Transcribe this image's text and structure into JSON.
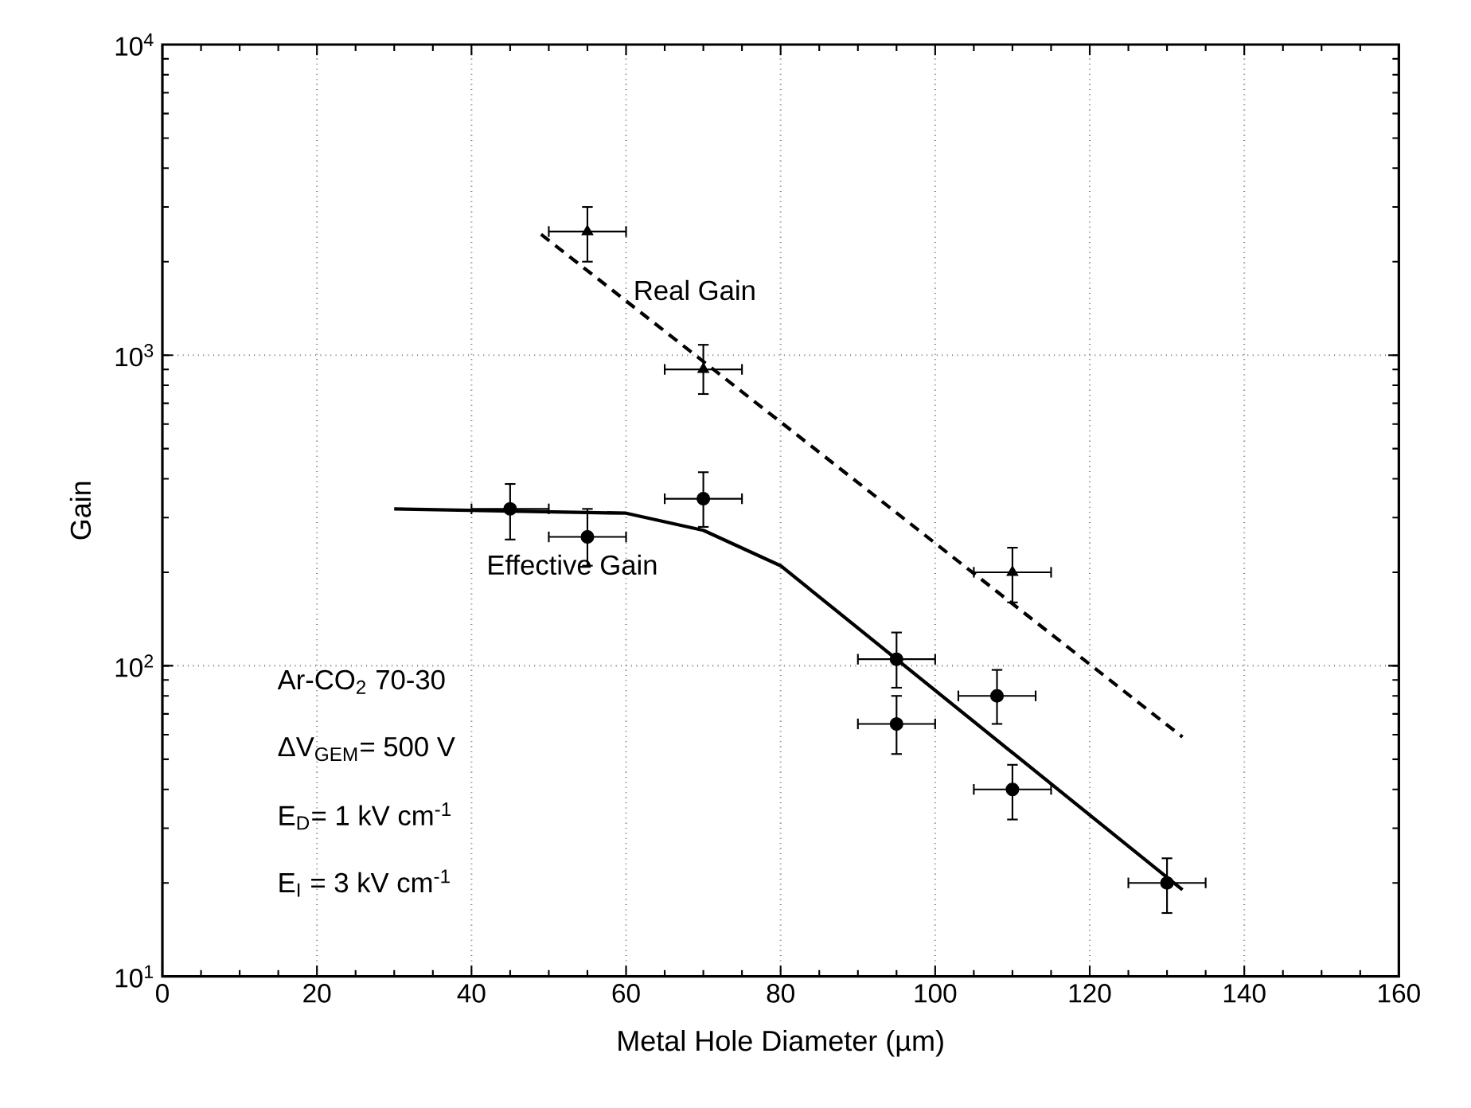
{
  "chart_data": {
    "type": "scatter",
    "xlabel": "Metal Hole Diameter (µm)",
    "ylabel": "Gain",
    "log": "y",
    "grid": true,
    "xlim": [
      0,
      160
    ],
    "xticks": [
      0,
      20,
      40,
      60,
      80,
      100,
      120,
      140,
      160
    ],
    "ylim": [
      10,
      10000
    ],
    "yticks": [
      {
        "value": 10,
        "label": "10$^{1}$"
      },
      {
        "value": 100,
        "label": "10$^{2}$"
      },
      {
        "value": 1000,
        "label": "10$^{3}$"
      },
      {
        "value": 10000,
        "label": "10$^{4}$"
      }
    ],
    "series": [
      {
        "color": "#000000",
        "marker": "circle",
        "x": [
          45,
          55,
          70,
          95,
          95,
          108,
          110,
          130
        ],
        "values": [
          320,
          260,
          345,
          105,
          65,
          80,
          40,
          20
        ],
        "xerrors": [
          5,
          5,
          5,
          5,
          5,
          5,
          5,
          5
        ],
        "errors": [
          [
            255,
            385
          ],
          [
            210,
            320
          ],
          [
            280,
            420
          ],
          [
            85,
            128
          ],
          [
            52,
            80
          ],
          [
            65,
            97
          ],
          [
            32,
            48
          ],
          [
            16,
            24
          ]
        ]
      },
      {
        "type": "line",
        "name": "Effective Gain",
        "color": "#000000",
        "line_style": "solid",
        "x": [
          30,
          60,
          70,
          80,
          132
        ],
        "values": [
          320,
          310,
          273,
          210,
          19
        ]
      },
      {
        "type": "scatter",
        "color": "#000000",
        "marker": "triangle",
        "x": [
          55,
          70,
          110
        ],
        "values": [
          2500,
          900,
          200
        ],
        "xerrors": [
          5,
          5,
          5
        ],
        "errors": [
          [
            2000,
            3000
          ],
          [
            750,
            1080
          ],
          [
            160,
            240
          ]
        ]
      },
      {
        "type": "line",
        "name": "Real Gain",
        "color": "#000000",
        "line_style": "dashed",
        "x": [
          49,
          132
        ],
        "values": [
          2450,
          59
        ]
      }
    ],
    "annotations": [
      "Ar-CO$_{2}$ 70-30",
      "ΔV$_{GEM}$= 500 V",
      "E$_{D}$= 1 kV cm$^{-1}$",
      "E$_{I}$ = 3 kV cm$^{-1}$"
    ]
  }
}
